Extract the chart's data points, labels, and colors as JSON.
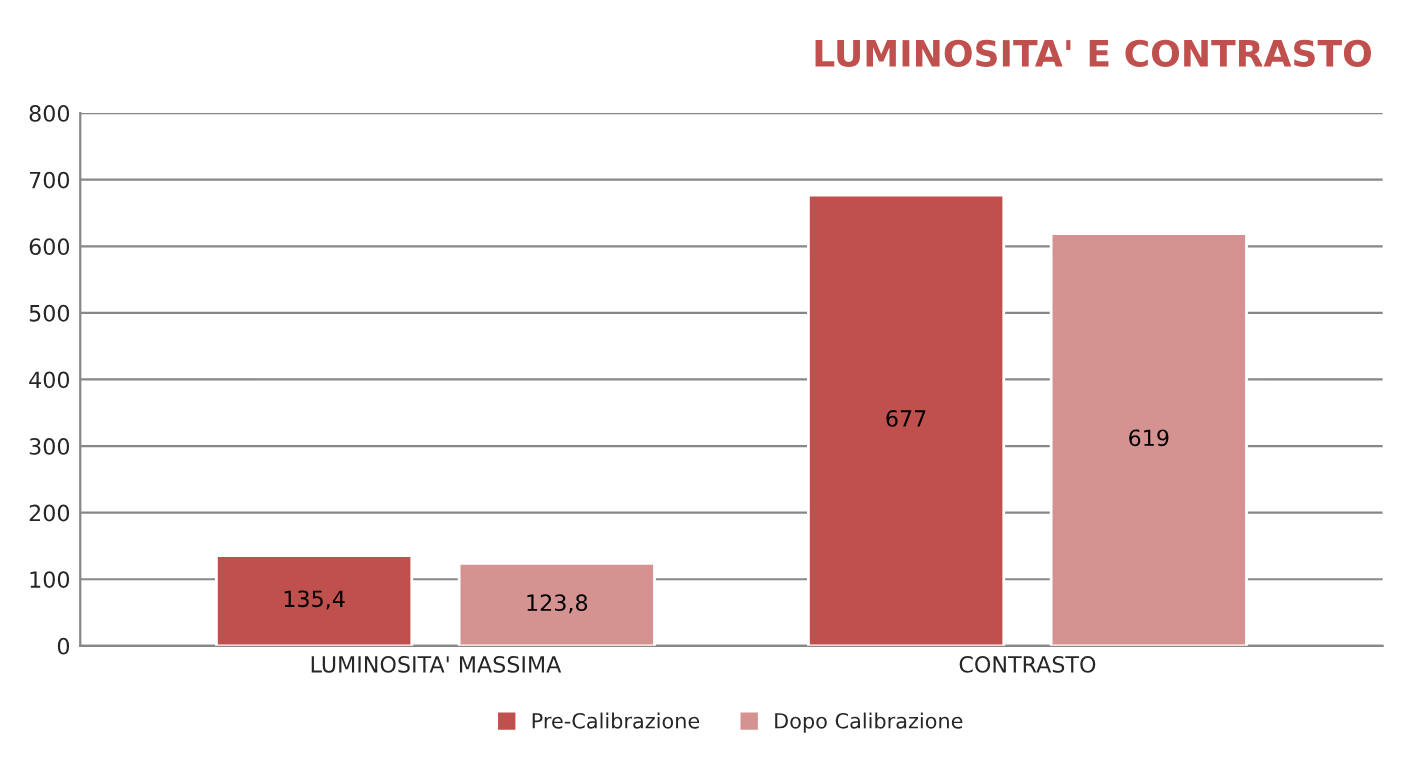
{
  "chart_data": {
    "type": "bar",
    "title": "LUMINOSITA' E CONTRASTO",
    "categories": [
      "LUMINOSITA' MASSIMA",
      "CONTRASTO"
    ],
    "series": [
      {
        "name": "Pre-Calibrazione",
        "color": "#c0504d",
        "values": [
          135.4,
          677
        ],
        "value_labels": [
          "135,4",
          "677"
        ]
      },
      {
        "name": "Dopo Calibrazione",
        "color": "#d49391",
        "values": [
          123.8,
          619
        ],
        "value_labels": [
          "123,8",
          "619"
        ]
      }
    ],
    "ylim": [
      0,
      800
    ],
    "yticks": [
      0,
      100,
      200,
      300,
      400,
      500,
      600,
      700,
      800
    ],
    "grid": "y",
    "legend": "bottom"
  }
}
